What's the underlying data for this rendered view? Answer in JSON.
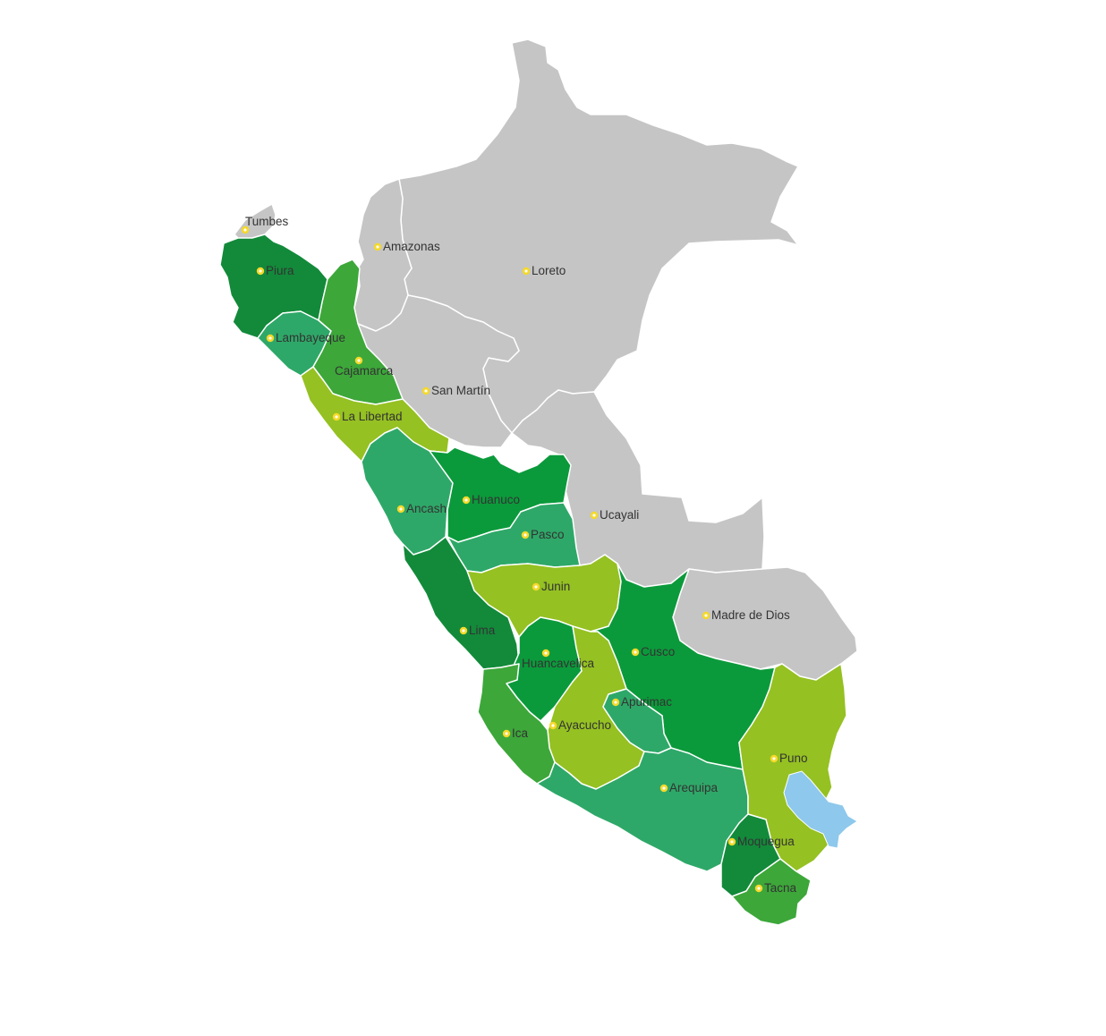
{
  "map": {
    "colors": {
      "unhighlighted": "#c5c5c5",
      "dark_green": "#128a3a",
      "green": "#3da73a",
      "bright_green": "#0b9a3b",
      "teal_green": "#2ea868",
      "lime": "#95c122",
      "lake": "#8ec8ec",
      "marker": "#f5d92a"
    },
    "regions": [
      {
        "id": "tumbes",
        "name": "Tumbes",
        "color": "unhighlighted"
      },
      {
        "id": "amazonas",
        "name": "Amazonas",
        "color": "unhighlighted"
      },
      {
        "id": "loreto",
        "name": "Loreto",
        "color": "unhighlighted"
      },
      {
        "id": "piura",
        "name": "Piura",
        "color": "dark_green"
      },
      {
        "id": "lambayeque",
        "name": "Lambayeque",
        "color": "teal_green"
      },
      {
        "id": "cajamarca",
        "name": "Cajamarca",
        "color": "green"
      },
      {
        "id": "san-martin",
        "name": "San Martín",
        "color": "unhighlighted"
      },
      {
        "id": "la-libertad",
        "name": "La Libertad",
        "color": "lime"
      },
      {
        "id": "huanuco",
        "name": "Huanuco",
        "color": "bright_green"
      },
      {
        "id": "ucayali",
        "name": "Ucayali",
        "color": "unhighlighted"
      },
      {
        "id": "ancash",
        "name": "Ancash",
        "color": "teal_green"
      },
      {
        "id": "pasco",
        "name": "Pasco",
        "color": "teal_green"
      },
      {
        "id": "junin",
        "name": "Junin",
        "color": "lime"
      },
      {
        "id": "madre-de-dios",
        "name": "Madre de Dios",
        "color": "unhighlighted"
      },
      {
        "id": "lima",
        "name": "Lima",
        "color": "dark_green"
      },
      {
        "id": "cusco",
        "name": "Cusco",
        "color": "bright_green"
      },
      {
        "id": "huancavelica",
        "name": "Huancavelica",
        "color": "bright_green"
      },
      {
        "id": "apurimac",
        "name": "Apurimac",
        "color": "teal_green"
      },
      {
        "id": "ayacucho",
        "name": "Ayacucho",
        "color": "lime"
      },
      {
        "id": "ica",
        "name": "Ica",
        "color": "green"
      },
      {
        "id": "puno",
        "name": "Puno",
        "color": "lime"
      },
      {
        "id": "arequipa",
        "name": "Arequipa",
        "color": "teal_green"
      },
      {
        "id": "moquegua",
        "name": "Moquegua",
        "color": "dark_green"
      },
      {
        "id": "tacna",
        "name": "Tacna",
        "color": "green"
      }
    ]
  }
}
